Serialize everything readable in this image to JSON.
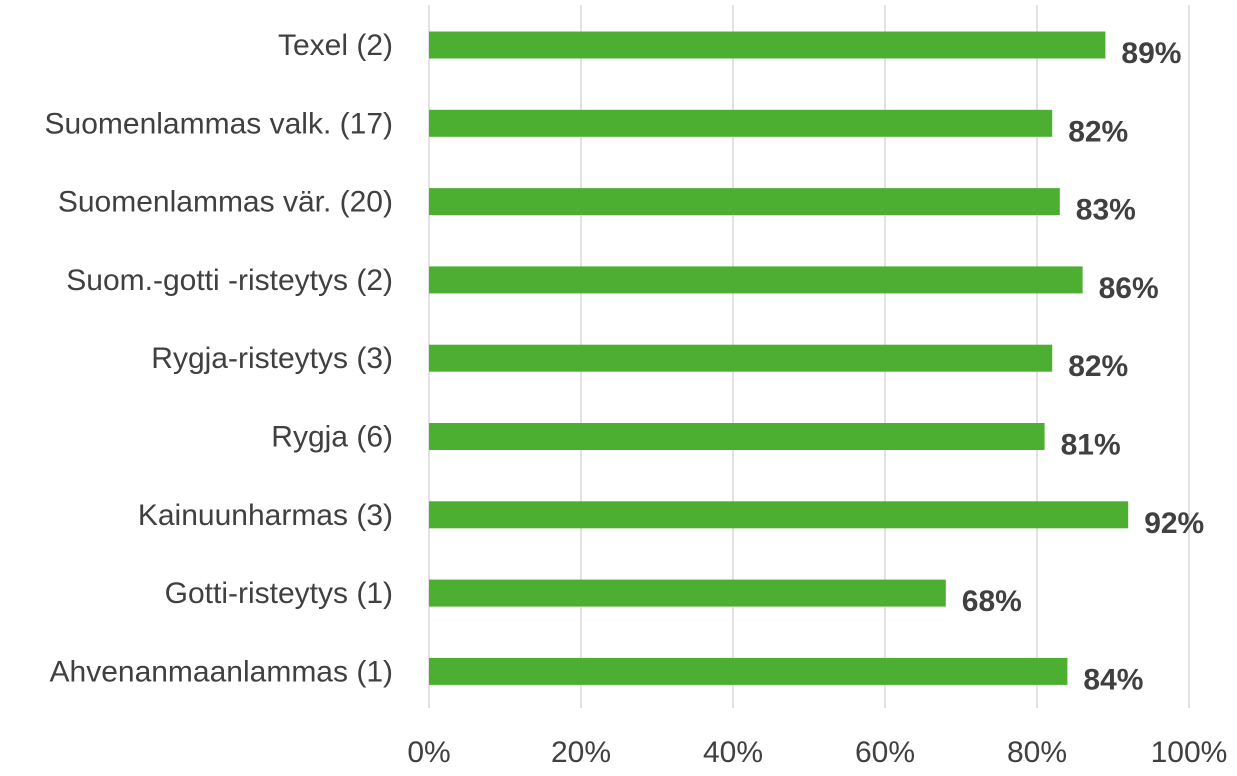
{
  "chart_data": {
    "type": "bar",
    "orientation": "horizontal",
    "categories": [
      "Texel (2)",
      "Suomenlammas valk. (17)",
      "Suomenlammas vär. (20)",
      "Suom.-gotti -risteytys (2)",
      "Rygja-risteytys (3)",
      "Rygja (6)",
      "Kainuunharmas (3)",
      "Gotti-risteytys (1)",
      "Ahvenanmaanlammas (1)"
    ],
    "values": [
      89,
      82,
      83,
      86,
      82,
      81,
      92,
      68,
      84
    ],
    "data_labels": [
      "89%",
      "82%",
      "83%",
      "86%",
      "82%",
      "81%",
      "92%",
      "68%",
      "84%"
    ],
    "x_ticks": [
      "0%",
      "20%",
      "40%",
      "60%",
      "80%",
      "100%"
    ],
    "x_tick_values": [
      0,
      20,
      40,
      60,
      80,
      100
    ],
    "xlim": [
      0,
      100
    ],
    "grid": true,
    "legend": "none",
    "bar_color": "#4caf32",
    "title": "",
    "xlabel": "",
    "ylabel": ""
  }
}
